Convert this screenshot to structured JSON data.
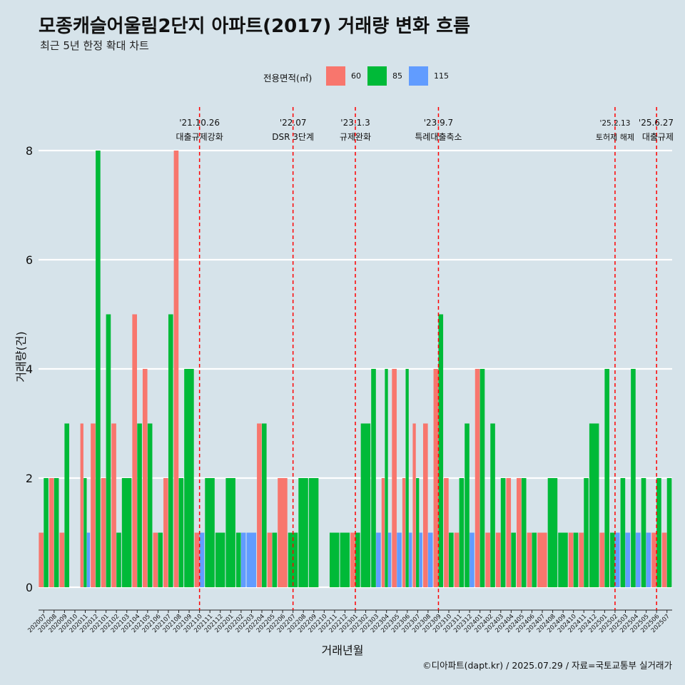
{
  "title": "모종캐슬어울림2단지 아파트(2017) 거래량 변화 흐름",
  "subtitle": "최근 5년 한정 확대 차트",
  "caption": "©디아파트(dapt.kr) / 2025.07.29 / 자료=국토교통부 실거래가",
  "legend": {
    "title": "전용면적(㎡)",
    "items": [
      {
        "label": "60",
        "color": "#F8766D"
      },
      {
        "label": "85",
        "color": "#00BA38"
      },
      {
        "label": "115",
        "color": "#619CFF"
      }
    ]
  },
  "chart_data": {
    "type": "bar",
    "xlabel": "거래년월",
    "ylabel": "거래량(건)",
    "ylim": [
      0,
      8
    ],
    "yticks": [
      0,
      2,
      4,
      6,
      8
    ],
    "grid": true,
    "legend_position": "top",
    "categories": [
      "202007",
      "202008",
      "202009",
      "202010",
      "202011",
      "202012",
      "202101",
      "202102",
      "202103",
      "202104",
      "202105",
      "202106",
      "202107",
      "202108",
      "202109",
      "202110",
      "202111",
      "202112",
      "202201",
      "202202",
      "202203",
      "202204",
      "202205",
      "202206",
      "202207",
      "202208",
      "202209",
      "202210",
      "202211",
      "202212",
      "202301",
      "202302",
      "202303",
      "202304",
      "202305",
      "202306",
      "202307",
      "202308",
      "202309",
      "202310",
      "202311",
      "202312",
      "202401",
      "202402",
      "202403",
      "202404",
      "202405",
      "202406",
      "202407",
      "202408",
      "202409",
      "202410",
      "202411",
      "202412",
      "202501",
      "202502",
      "202503",
      "202504",
      "202505",
      "202506",
      "202507"
    ],
    "series": [
      {
        "name": "60",
        "color": "#F8766D",
        "values": [
          1,
          2,
          1,
          0,
          3,
          3,
          2,
          3,
          0,
          5,
          4,
          1,
          2,
          8,
          0,
          1,
          0,
          0,
          0,
          0,
          0,
          3,
          1,
          2,
          0,
          0,
          0,
          0,
          0,
          0,
          1,
          0,
          0,
          2,
          4,
          2,
          3,
          3,
          4,
          2,
          1,
          0,
          4,
          1,
          1,
          2,
          2,
          1,
          1,
          0,
          0,
          1,
          1,
          0,
          1,
          0,
          0,
          0,
          0,
          1,
          1
        ]
      },
      {
        "name": "85",
        "color": "#00BA38",
        "values": [
          2,
          2,
          3,
          0,
          2,
          8,
          5,
          1,
          2,
          3,
          3,
          1,
          5,
          2,
          4,
          0,
          2,
          1,
          2,
          1,
          0,
          3,
          1,
          0,
          1,
          2,
          2,
          0,
          1,
          1,
          1,
          3,
          4,
          4,
          0,
          4,
          2,
          0,
          5,
          1,
          2,
          3,
          4,
          3,
          2,
          1,
          2,
          1,
          0,
          2,
          1,
          1,
          2,
          3,
          4,
          1,
          2,
          4,
          2,
          2,
          2
        ]
      },
      {
        "name": "115",
        "color": "#619CFF",
        "values": [
          0,
          0,
          0,
          0,
          1,
          0,
          0,
          0,
          0,
          0,
          0,
          0,
          0,
          0,
          0,
          1,
          0,
          0,
          0,
          1,
          1,
          0,
          0,
          0,
          0,
          0,
          0,
          0,
          0,
          0,
          0,
          0,
          1,
          1,
          1,
          1,
          1,
          1,
          0,
          0,
          0,
          1,
          0,
          0,
          0,
          0,
          0,
          0,
          0,
          0,
          0,
          0,
          0,
          0,
          0,
          1,
          1,
          1,
          1,
          0,
          0
        ]
      }
    ],
    "events": [
      {
        "date": "'21.10.26",
        "label": "대출규제강화",
        "category": "202110"
      },
      {
        "date": "'22.07",
        "label": "DSR 3단계",
        "category": "202207"
      },
      {
        "date": "'23.1.3",
        "label": "규제완화",
        "category": "202301"
      },
      {
        "date": "'23.9.7",
        "label": "특례대출축소",
        "category": "202309"
      },
      {
        "date": "'25.2.13",
        "label": "토허제 해제",
        "category": "202502"
      },
      {
        "date": "'25.6.27",
        "label": "대출규제",
        "category": "202506"
      }
    ]
  }
}
